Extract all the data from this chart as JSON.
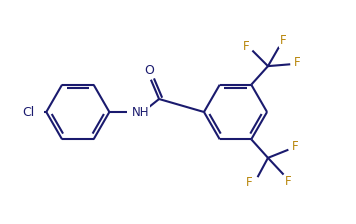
{
  "background": "#ffffff",
  "bond_color": "#1a1a6e",
  "f_color": "#b8860b",
  "line_width": 1.5,
  "font_size": 8.5,
  "figsize": [
    3.56,
    2.24
  ],
  "dpi": 100,
  "xlim": [
    0,
    9.5
  ],
  "ylim": [
    0,
    6.0
  ]
}
